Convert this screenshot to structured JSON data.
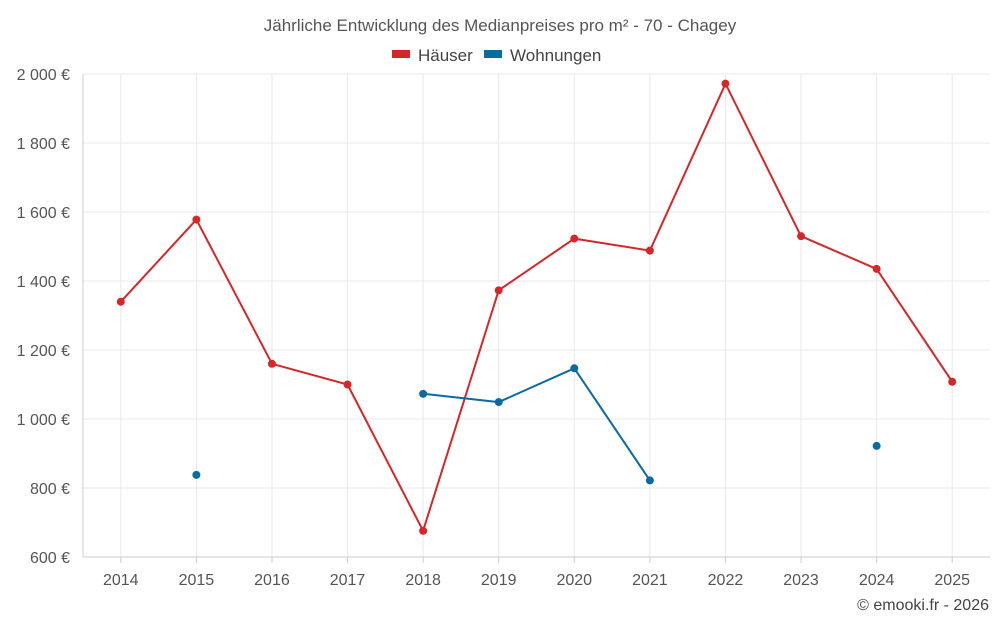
{
  "chart_data": {
    "type": "line",
    "title": "Jährliche Entwicklung des Medianpreises pro m² - 70 - Chagey",
    "categories": [
      "2014",
      "2015",
      "2016",
      "2017",
      "2018",
      "2019",
      "2020",
      "2021",
      "2022",
      "2023",
      "2024",
      "2025"
    ],
    "series": [
      {
        "name": "Häuser",
        "color": "#d62728",
        "values": [
          1340,
          1578,
          1160,
          1100,
          676,
          1373,
          1523,
          1488,
          1972,
          1530,
          1435,
          1108
        ]
      },
      {
        "name": "Wohnungen",
        "color": "#0b6aa2",
        "values": [
          null,
          838,
          null,
          null,
          1073,
          1049,
          1147,
          822,
          null,
          null,
          922,
          null
        ]
      }
    ],
    "ylim": [
      600,
      2000
    ],
    "yticks": [
      600,
      800,
      1000,
      1200,
      1400,
      1600,
      1800,
      2000
    ],
    "ytick_labels": [
      "600 €",
      "800 €",
      "1 000 €",
      "1 200 €",
      "1 400 €",
      "1 600 €",
      "1 800 €",
      "2 000 €"
    ],
    "xlabel": "",
    "ylabel": "",
    "legend_position": "top-center",
    "grid": true,
    "credit": "© emooki.fr - 2026"
  }
}
